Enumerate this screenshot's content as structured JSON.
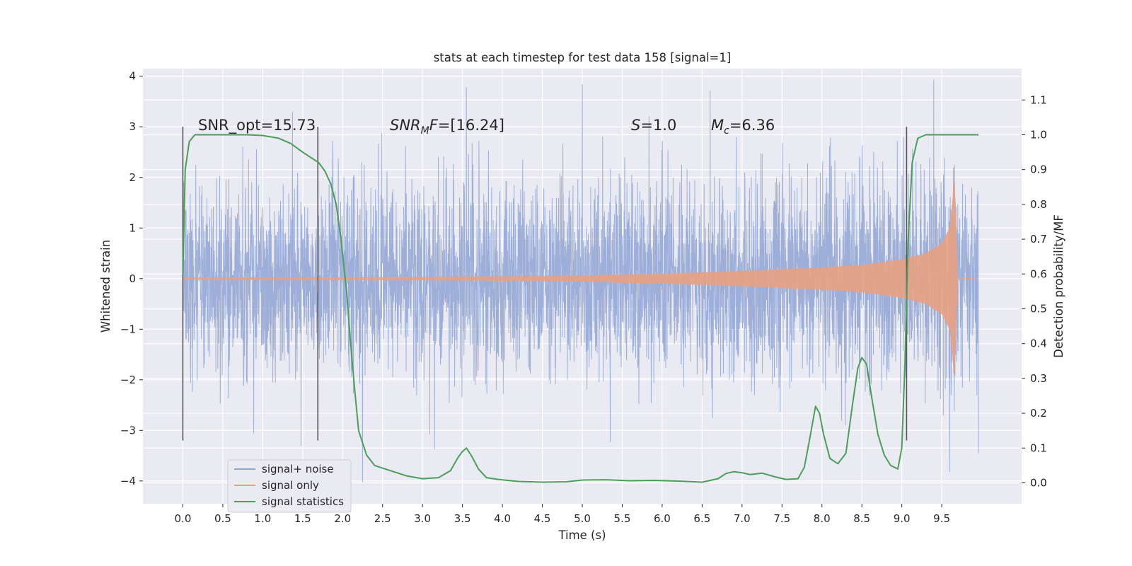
{
  "chart_data": {
    "type": "line",
    "title": "stats at each timestep for test data 158 [signal=1]",
    "xlabel": "Time (s)",
    "ylabel": "Whitened strain",
    "ylabel_right": "Detection probability/MF",
    "xlim": [
      -0.5,
      10.5
    ],
    "ylim": [
      -4.45,
      4.15
    ],
    "ylim_right": [
      -0.06,
      1.19
    ],
    "xticks": [
      0.0,
      0.5,
      1.0,
      1.5,
      2.0,
      2.5,
      3.0,
      3.5,
      4.0,
      4.5,
      5.0,
      5.5,
      6.0,
      6.5,
      7.0,
      7.5,
      8.0,
      8.5,
      9.0,
      9.5
    ],
    "yticks": [
      -4,
      -3,
      -2,
      -1,
      0,
      1,
      2,
      3,
      4
    ],
    "yticks_right": [
      0.0,
      0.1,
      0.2,
      0.3,
      0.4,
      0.5,
      0.6,
      0.7,
      0.8,
      0.9,
      1.0,
      1.1
    ],
    "grid": true,
    "legend": "lower-left",
    "annotations": {
      "snr_opt": "SNR_opt=15.73",
      "snr_mf_italic": "SNR",
      "snr_mf_sub": "M",
      "snr_mf_rest": "F=[16.24]",
      "s_italic": "S",
      "s_rest": "=1.0",
      "mc_italic": "M",
      "mc_sub": "c",
      "mc_rest": "=6.36"
    },
    "vlines": [
      0.0,
      1.69,
      9.06
    ],
    "vline_range": [
      -3.2,
      3.0
    ],
    "series": [
      {
        "name": "signal+ noise",
        "color": "#8fa5d4",
        "time_range": [
          0.0,
          9.96
        ],
        "noise_std": 1.0,
        "spike_peaks": [
          [
            2.25,
            -4.05
          ],
          [
            3.55,
            3.75
          ],
          [
            5.0,
            3.78
          ],
          [
            9.4,
            3.82
          ],
          [
            5.35,
            -3.3
          ],
          [
            9.96,
            -3.45
          ],
          [
            9.6,
            -3.4
          ],
          [
            1.48,
            -3.3
          ],
          [
            3.15,
            -3.4
          ],
          [
            6.6,
            3.6
          ]
        ]
      },
      {
        "name": "signal only",
        "color": "#e8a183",
        "chirp_envelope": {
          "t": [
            0.0,
            3.0,
            5.0,
            6.0,
            7.0,
            8.0,
            8.5,
            9.0,
            9.3,
            9.5,
            9.6,
            9.66,
            9.7,
            9.96
          ],
          "amp": [
            0.02,
            0.03,
            0.06,
            0.1,
            0.15,
            0.22,
            0.27,
            0.38,
            0.5,
            0.7,
            1.0,
            1.95,
            0.0,
            0.0
          ]
        }
      },
      {
        "name": "signal statistics",
        "color": "#4a9e5a",
        "axis": "right",
        "x": [
          0.0,
          0.03,
          0.08,
          0.15,
          0.25,
          0.5,
          0.8,
          1.0,
          1.2,
          1.35,
          1.5,
          1.6,
          1.7,
          1.78,
          1.85,
          1.92,
          1.98,
          2.05,
          2.1,
          2.15,
          2.2,
          2.3,
          2.4,
          2.6,
          2.8,
          3.0,
          3.2,
          3.35,
          3.45,
          3.5,
          3.55,
          3.62,
          3.7,
          3.8,
          3.95,
          4.2,
          4.5,
          4.8,
          5.0,
          5.3,
          5.6,
          5.9,
          6.2,
          6.5,
          6.7,
          6.8,
          6.9,
          7.0,
          7.1,
          7.25,
          7.4,
          7.55,
          7.7,
          7.78,
          7.85,
          7.92,
          7.97,
          8.02,
          8.1,
          8.2,
          8.3,
          8.38,
          8.45,
          8.5,
          8.56,
          8.62,
          8.7,
          8.78,
          8.86,
          8.95,
          9.0,
          9.04,
          9.08,
          9.13,
          9.2,
          9.3,
          9.5,
          9.7,
          9.96
        ],
        "y": [
          0.6,
          0.9,
          0.98,
          1.0,
          1.0,
          1.0,
          1.0,
          0.998,
          0.99,
          0.975,
          0.95,
          0.935,
          0.92,
          0.895,
          0.86,
          0.8,
          0.7,
          0.55,
          0.4,
          0.27,
          0.15,
          0.08,
          0.05,
          0.035,
          0.02,
          0.012,
          0.015,
          0.035,
          0.075,
          0.09,
          0.1,
          0.075,
          0.04,
          0.015,
          0.01,
          0.004,
          0.002,
          0.003,
          0.008,
          0.009,
          0.006,
          0.007,
          0.005,
          0.002,
          0.012,
          0.027,
          0.032,
          0.029,
          0.024,
          0.028,
          0.018,
          0.01,
          0.012,
          0.045,
          0.13,
          0.22,
          0.2,
          0.14,
          0.07,
          0.055,
          0.085,
          0.22,
          0.33,
          0.36,
          0.34,
          0.25,
          0.14,
          0.08,
          0.05,
          0.04,
          0.1,
          0.35,
          0.7,
          0.92,
          0.99,
          1.0,
          1.0,
          1.0,
          1.0
        ]
      }
    ]
  }
}
